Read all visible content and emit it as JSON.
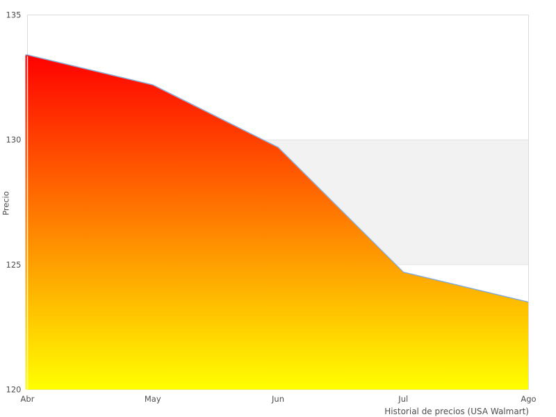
{
  "chart_data": {
    "type": "area",
    "title": "Historial de precios (USA Walmart)",
    "ylabel": "Precio",
    "xlabel": "",
    "x": [
      "Abr",
      "May",
      "Jun",
      "Jul",
      "Ago"
    ],
    "values": [
      133.4,
      132.2,
      129.7,
      124.7,
      123.5
    ],
    "ylim": [
      120,
      135
    ],
    "yticks": [
      135,
      130,
      125,
      120
    ],
    "grid": "off",
    "legend": "none",
    "highlight_band": {
      "y_from": 125,
      "y_to": 130,
      "fill": "#f2f2f2",
      "edge": "#e4e4e4"
    },
    "style": {
      "line_color": "#86acd5",
      "area_gradient_top": "#ff0000",
      "area_gradient_bottom": "#ffff00",
      "plot_border_color": "#d9d9d9",
      "text_color": "#4d4d4d",
      "background": "#ffffff"
    }
  }
}
